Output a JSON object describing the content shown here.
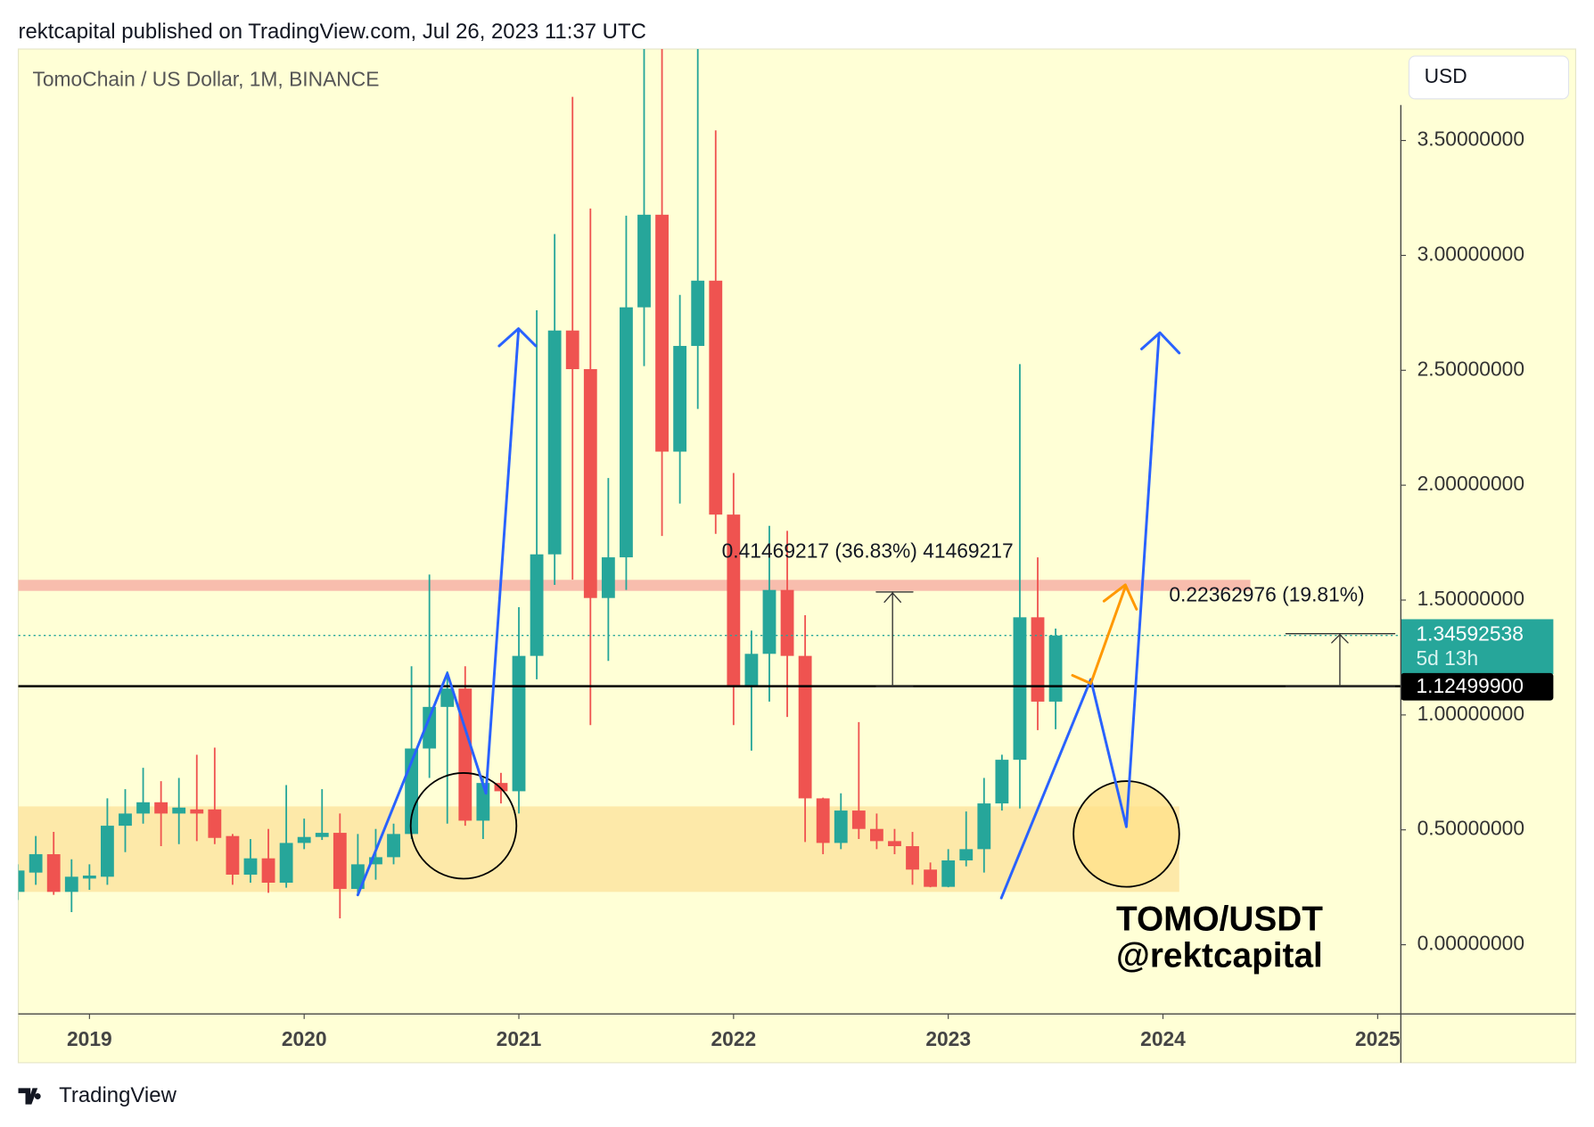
{
  "publisher_line": "rektcapital published on TradingView.com, Jul 26, 2023 11:37 UTC",
  "currency": "USD",
  "brand": "TradingView",
  "chart_data": {
    "type": "candlestick",
    "title": "TomoChain / US Dollar, 1M, BINANCE",
    "categories": [
      null,
      null,
      null,
      null,
      "2019",
      null,
      null,
      null,
      null,
      null,
      null,
      null,
      null,
      null,
      null,
      null,
      "2020",
      null,
      null,
      null,
      null,
      null,
      null,
      null,
      null,
      null,
      null,
      null,
      "2021",
      null,
      null,
      null,
      null,
      null,
      null,
      null,
      null,
      null,
      null,
      null,
      "2022",
      null,
      null,
      null,
      null,
      null,
      null,
      null,
      null,
      null,
      null,
      null,
      "2023",
      null,
      null,
      null,
      null,
      null,
      null,
      null,
      null,
      null,
      null,
      null,
      "2024",
      null,
      null,
      null,
      null,
      null,
      null,
      null,
      null,
      null,
      null,
      null,
      "2025"
    ],
    "open": [
      0.23,
      0.314,
      0.394,
      0.23,
      0.288,
      0.296,
      0.518,
      0.571,
      0.62,
      0.571,
      0.589,
      0.589,
      0.473,
      0.305,
      0.376,
      0.27,
      0.443,
      0.469,
      0.487,
      0.243,
      0.35,
      0.381,
      0.482,
      0.854,
      1.035,
      1.115,
      0.54,
      0.704,
      0.668,
      1.257,
      1.699,
      2.673,
      2.505,
      1.509,
      1.686,
      2.774,
      3.177,
      2.146,
      2.606,
      2.89,
      1.872,
      1.124,
      1.266,
      1.544,
      1.257,
      0.637,
      0.443,
      0.584,
      0.504,
      0.451,
      0.429,
      0.327,
      0.252,
      0.367,
      0.416,
      0.615,
      0.805,
      1.425,
      1.058,
      null,
      null,
      null,
      null,
      null,
      null,
      null,
      null,
      null,
      null,
      null,
      null,
      null,
      null,
      null,
      null,
      null,
      null
    ],
    "high": [
      0.35,
      0.473,
      0.491,
      0.372,
      0.35,
      0.637,
      0.677,
      0.77,
      0.712,
      0.726,
      0.827,
      0.858,
      0.482,
      0.46,
      0.504,
      0.695,
      0.549,
      0.677,
      0.571,
      0.482,
      0.504,
      0.527,
      1.212,
      1.611,
      1.19,
      1.212,
      0.726,
      0.748,
      1.469,
      2.761,
      3.093,
      3.69,
      3.204,
      2.031,
      3.173,
      3.95,
      3.95,
      2.828,
      3.95,
      3.544,
      2.053,
      1.367,
      1.823,
      1.801,
      1.434,
      0.64,
      0.659,
      0.969,
      0.571,
      0.504,
      0.491,
      0.358,
      0.416,
      0.58,
      0.726,
      0.827,
      2.527,
      1.686,
      1.376,
      null,
      null,
      null,
      null,
      null,
      null,
      null,
      null,
      null,
      null,
      null,
      null,
      null,
      null,
      null,
      null,
      null,
      null
    ],
    "low": [
      0.195,
      0.261,
      0.217,
      0.142,
      0.239,
      0.261,
      0.403,
      0.527,
      0.429,
      0.438,
      0.451,
      0.438,
      0.261,
      0.27,
      0.226,
      0.248,
      0.416,
      0.456,
      0.115,
      0.217,
      0.283,
      0.35,
      0.46,
      0.726,
      0.527,
      0.518,
      0.46,
      0.615,
      0.571,
      1.155,
      1.566,
      1.589,
      0.956,
      1.235,
      1.544,
      2.518,
      1.779,
      1.92,
      2.332,
      1.788,
      0.956,
      0.845,
      1.058,
      0.991,
      0.447,
      0.394,
      0.416,
      0.46,
      0.416,
      0.394,
      0.261,
      0.25,
      0.25,
      0.341,
      0.314,
      0.584,
      0.593,
      0.934,
      0.938,
      null,
      null,
      null,
      null,
      null,
      null,
      null,
      null,
      null,
      null,
      null,
      null,
      null,
      null,
      null,
      null,
      null,
      null
    ],
    "close": [
      0.323,
      0.394,
      0.23,
      0.296,
      0.301,
      0.518,
      0.571,
      0.62,
      0.571,
      0.597,
      0.571,
      0.465,
      0.305,
      0.376,
      0.27,
      0.443,
      0.469,
      0.487,
      0.243,
      0.35,
      0.381,
      0.482,
      0.854,
      1.035,
      1.115,
      0.54,
      0.704,
      0.668,
      1.257,
      1.699,
      2.673,
      2.505,
      1.509,
      1.686,
      2.774,
      3.177,
      2.146,
      2.606,
      2.89,
      1.872,
      1.124,
      1.266,
      1.544,
      1.257,
      0.637,
      0.443,
      0.584,
      0.504,
      0.451,
      0.429,
      0.327,
      0.252,
      0.367,
      0.416,
      0.615,
      0.805,
      1.425,
      1.058,
      1.34592538,
      null,
      null,
      null,
      null,
      null,
      null,
      null,
      null,
      null,
      null,
      null,
      null,
      null,
      null,
      null,
      null,
      null,
      null
    ],
    "up_color": "#26a69a",
    "down_color": "#ef5350",
    "ylim": [
      -0.301,
      3.898
    ],
    "yticks": [
      {
        "value": 0,
        "label": "0.00000000"
      },
      {
        "value": 0.5,
        "label": "0.50000000"
      },
      {
        "value": 1,
        "label": "1.00000000"
      },
      {
        "value": 1.5,
        "label": "1.50000000"
      },
      {
        "value": 2,
        "label": "2.00000000"
      },
      {
        "value": 2.5,
        "label": "2.50000000"
      },
      {
        "value": 3,
        "label": "3.00000000"
      },
      {
        "value": 3.5,
        "label": "3.50000000"
      }
    ],
    "zones": [
      {
        "from": 0.23,
        "to": 0.602,
        "color": "#fde7a4"
      },
      {
        "from": 1.54,
        "to": 1.588,
        "color": "#f7b6a8"
      }
    ],
    "price_lines": [
      {
        "value": 1.34592538,
        "countdown": "5d 13h",
        "color": "#26a69a",
        "style": "dotted"
      },
      {
        "value": 1.124999,
        "label": "1.12499900",
        "color": "#000000",
        "style": "solid"
      }
    ],
    "annotations": [
      "0.41469217 (36.83%) 41469217",
      "0.22362976 (19.81%)",
      "TOMO/USDT",
      "@rektcapital"
    ]
  }
}
